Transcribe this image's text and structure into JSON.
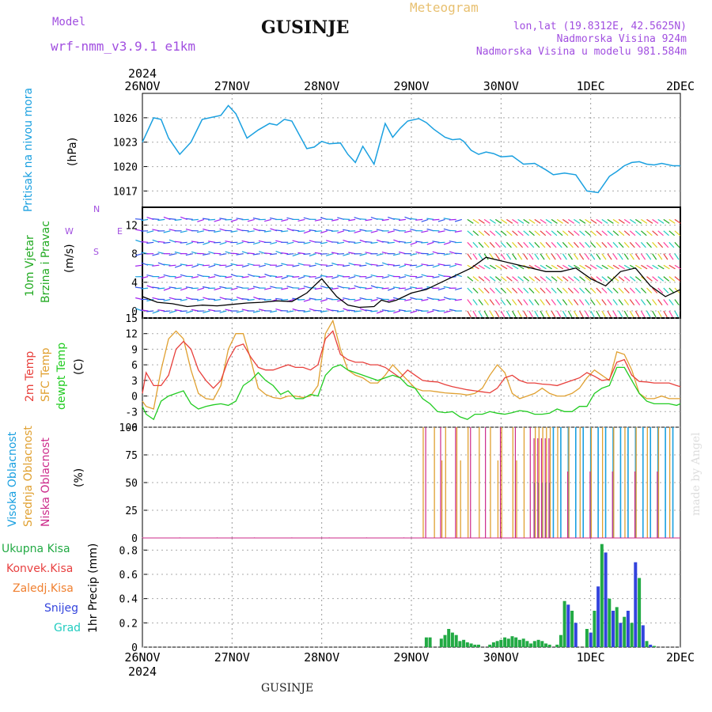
{
  "header": {
    "model_label": "Model",
    "model_name": "wrf-nmm_v3.9.1 e1km",
    "title": "GUSINJE",
    "product": "Meteogram",
    "lonlat": "lon,lat (19.8312E, 42.5625N)",
    "elevation": "Nadmorska Visina 924m",
    "model_elevation": "Nadmorska Visina u modelu 981.584m",
    "footer_title": "GUSINJE",
    "credit": "made by Angel"
  },
  "axis": {
    "year": "2024",
    "days": [
      "26NOV",
      "27NOV",
      "28NOV",
      "29NOV",
      "30NOV",
      "1DEC",
      "2DEC"
    ]
  },
  "labels": {
    "pressure": {
      "name": "Pritisak na nivou mora",
      "unit": "(hPa)"
    },
    "wind": {
      "line1": "10m Vjetar",
      "line2": "Brzina i Pravac",
      "unit": "(m/s)",
      "compass": "N",
      "w": "W",
      "e": "E",
      "s": "S"
    },
    "temp": {
      "t2m": "2m Temp",
      "sfc": "SFC Temp",
      "dew": "dewpt Temp",
      "unit": "(C)"
    },
    "cloud": {
      "high": "Visoka Oblacnost",
      "mid": "Srednja Oblacnost",
      "low": "Niska Oblacnost",
      "unit": "(%)"
    },
    "precip": {
      "total": "Ukupna Kisa",
      "conv": "Konvek.Kisa",
      "frz": "Zaledj.Kisa",
      "snow": "Snijeg",
      "grad": "Grad",
      "unit": "1hr Precip (mm)"
    }
  },
  "colors": {
    "pressure": "#1aa0e0",
    "t2m": "#e8403c",
    "sfc": "#e0a030",
    "dew": "#22cc22",
    "high": "#1aa0e0",
    "mid": "#e0a030",
    "low": "#cc2a8a",
    "total": "#22aa44",
    "snow": "#3344dd",
    "conv": "#e84040",
    "frz": "#f08030",
    "grad": "#22ccc0",
    "label_purple": "#a14fe0",
    "title_orange": "#e8c070"
  },
  "chart_data": [
    {
      "type": "line",
      "name": "pressure",
      "ylim": [
        1015,
        1029
      ],
      "yticks": [
        1017,
        1020,
        1023,
        1026
      ],
      "x_hours": [
        0,
        6,
        10,
        14,
        20,
        26,
        32,
        36,
        42,
        46,
        50,
        56,
        62,
        68,
        72,
        76,
        80,
        88,
        92,
        96,
        100,
        106,
        110,
        114,
        118,
        124,
        130,
        134,
        138,
        142,
        148,
        152,
        156,
        162,
        166,
        170,
        172,
        176,
        180,
        184,
        188,
        192,
        198,
        204,
        210,
        216,
        220,
        226,
        232,
        238,
        244,
        250,
        254,
        258,
        262,
        266,
        270,
        274,
        278,
        284,
        288
      ],
      "values": [
        1023,
        1026,
        1025.8,
        1023.5,
        1021.5,
        1023,
        1025.8,
        1026,
        1026.3,
        1027.5,
        1026.5,
        1023.5,
        1024.5,
        1025.3,
        1025.1,
        1025.8,
        1025.6,
        1022.2,
        1022.4,
        1023.1,
        1022.8,
        1022.9,
        1021.5,
        1020.5,
        1022.5,
        1020.3,
        1025.3,
        1023.6,
        1024.7,
        1025.6,
        1025.9,
        1025.4,
        1024.6,
        1023.6,
        1023.3,
        1023.4,
        1023.1,
        1022,
        1021.5,
        1021.8,
        1021.6,
        1021.2,
        1021.3,
        1020.3,
        1020.4,
        1019.6,
        1019.0,
        1019.2,
        1019.0,
        1017.0,
        1016.8,
        1018.8,
        1019.4,
        1020.1,
        1020.5,
        1020.6,
        1020.3,
        1020.2,
        1020.4,
        1020.1,
        1020.1
      ]
    },
    {
      "type": "line",
      "name": "wind",
      "ylim": [
        -1,
        14.5
      ],
      "yticks": [
        0,
        4,
        8,
        12
      ],
      "x_hours": [
        0,
        8,
        16,
        24,
        32,
        40,
        48,
        56,
        64,
        72,
        80,
        88,
        96,
        104,
        110,
        116,
        124,
        128,
        132,
        136,
        144,
        152,
        160,
        168,
        176,
        184,
        192,
        200,
        208,
        216,
        224,
        232,
        240,
        248,
        256,
        264,
        272,
        280,
        288
      ],
      "speed": [
        2,
        1.2,
        1.0,
        0.6,
        0.8,
        0.7,
        0.9,
        1.1,
        1.2,
        1.4,
        1.3,
        2.5,
        4.5,
        2.0,
        0.8,
        0.5,
        0.6,
        1.5,
        1.2,
        1.5,
        2.5,
        3.0,
        4.0,
        5.0,
        6.0,
        7.5,
        7.0,
        6.5,
        6.0,
        5.5,
        5.5,
        6.0,
        4.5,
        3.5,
        5.5,
        6.0,
        3.5,
        2.0,
        3.0
      ]
    },
    {
      "type": "line",
      "name": "temperature",
      "ylim": [
        -6,
        15
      ],
      "yticks": [
        -6,
        -3,
        0,
        3,
        6,
        9,
        12,
        15
      ],
      "x_hours": [
        0,
        2,
        6,
        10,
        14,
        18,
        22,
        26,
        30,
        34,
        38,
        42,
        46,
        50,
        54,
        58,
        62,
        66,
        70,
        74,
        78,
        82,
        86,
        90,
        94,
        98,
        102,
        106,
        110,
        114,
        118,
        122,
        126,
        130,
        134,
        138,
        142,
        146,
        150,
        154,
        158,
        162,
        166,
        170,
        174,
        178,
        182,
        186,
        190,
        194,
        198,
        202,
        206,
        210,
        214,
        218,
        222,
        226,
        230,
        234,
        238,
        242,
        246,
        250,
        254,
        258,
        262,
        266,
        270,
        274,
        278,
        282,
        286,
        288
      ],
      "t2m": [
        0.5,
        4.5,
        2,
        2,
        4,
        9,
        10.5,
        9,
        5,
        3,
        1.5,
        3,
        7,
        9.5,
        10,
        7.5,
        5.5,
        5,
        5,
        5.5,
        6,
        5.5,
        5.5,
        5,
        6,
        11,
        12.5,
        8,
        7,
        6.5,
        6.5,
        6,
        6,
        5.5,
        4.5,
        3.5,
        5,
        4,
        3,
        2.8,
        2.7,
        2.2,
        1.8,
        1.5,
        1.2,
        1,
        0.8,
        0.6,
        1.5,
        3.5,
        4,
        3,
        2.5,
        2.5,
        2.3,
        2.2,
        2,
        2.5,
        3,
        3.5,
        4.5,
        3.8,
        3,
        3.2,
        6.5,
        7,
        4,
        2.8,
        2.7,
        2.5,
        2.5,
        2.5,
        2.0,
        1.8
      ],
      "sfc": [
        -1,
        -2,
        -2.5,
        5,
        11,
        12.5,
        11,
        5,
        0.5,
        -0.5,
        -0.7,
        2,
        9,
        12,
        12,
        7,
        1.5,
        0.3,
        -0.3,
        -0.5,
        0,
        0,
        -0.3,
        0,
        2,
        12,
        14.5,
        9,
        5,
        4,
        3.5,
        2.5,
        2.5,
        4,
        6,
        4.5,
        3,
        1.5,
        1,
        1,
        0.8,
        0.6,
        0.5,
        0.4,
        0.2,
        0.5,
        1.5,
        4,
        6,
        4.5,
        0.5,
        -0.5,
        0,
        0.5,
        1.5,
        0.5,
        0,
        0,
        0.5,
        1.5,
        3.5,
        5,
        4,
        3,
        8.5,
        8,
        5,
        0.5,
        -0.5,
        -0.5,
        0,
        -0.5,
        -0.5,
        -0.5
      ],
      "dew": [
        -2,
        -3.5,
        -4.5,
        -1,
        0,
        0.5,
        1,
        -1.5,
        -2.5,
        -2,
        -1.7,
        -1.5,
        -1.8,
        -1,
        2,
        3,
        4.5,
        3,
        2,
        0.3,
        1,
        -0.5,
        -0.5,
        0.3,
        0,
        4,
        5.5,
        6,
        5,
        4.5,
        4,
        3.5,
        3,
        3.5,
        4,
        3.5,
        2,
        1.5,
        -0.5,
        -1.5,
        -3,
        -3.2,
        -3,
        -4,
        -4.5,
        -3.5,
        -3.5,
        -3,
        -3.3,
        -3.5,
        -3.2,
        -2.8,
        -3,
        -3.5,
        -3.5,
        -3.3,
        -2.5,
        -3,
        -3,
        -2,
        -2,
        0.5,
        1.5,
        2,
        5.5,
        5.5,
        3,
        0.5,
        -1,
        -1.5,
        -1.5,
        -1.5,
        -1.8,
        -1.5
      ]
    },
    {
      "type": "bar",
      "name": "cloud cover",
      "ylim": [
        0,
        100
      ],
      "yticks": [
        0,
        25,
        50,
        75,
        100
      ]
    },
    {
      "type": "bar",
      "name": "precipitation",
      "ylim": [
        0,
        0.9
      ],
      "yticks": [
        0,
        0.2,
        0.4,
        0.6,
        0.8
      ],
      "x_hours": [
        152,
        154,
        160,
        162,
        164,
        166,
        168,
        170,
        172,
        174,
        176,
        178,
        180,
        186,
        188,
        190,
        192,
        194,
        196,
        198,
        200,
        202,
        204,
        206,
        208,
        210,
        212,
        214,
        216,
        218,
        220,
        222,
        224,
        226,
        228,
        230,
        232,
        238,
        240,
        242,
        244,
        246,
        248,
        250,
        252,
        254,
        256,
        258,
        260,
        262,
        264,
        266,
        268,
        270,
        272,
        274
      ],
      "total": [
        0.08,
        0.08,
        0.07,
        0.1,
        0.15,
        0.12,
        0.1,
        0.05,
        0.06,
        0.04,
        0.03,
        0.02,
        0.02,
        0.02,
        0.04,
        0.05,
        0.06,
        0.08,
        0.07,
        0.09,
        0.08,
        0.06,
        0.07,
        0.05,
        0.03,
        0.05,
        0.06,
        0.05,
        0.03,
        0.02,
        0.0,
        0.02,
        0.1,
        0.38,
        0.35,
        0.3,
        0.2,
        0.15,
        0.12,
        0.3,
        0.5,
        0.85,
        0.78,
        0.4,
        0.3,
        0.33,
        0.2,
        0.25,
        0.3,
        0.2,
        0.7,
        0.57,
        0.18,
        0.05,
        0.02,
        0.01
      ]
    }
  ]
}
